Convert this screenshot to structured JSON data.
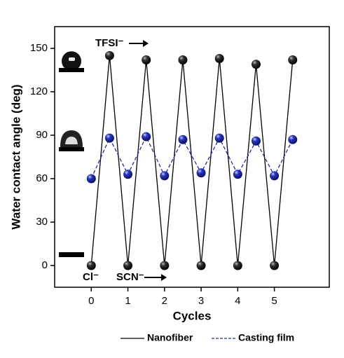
{
  "chart_data": {
    "type": "line",
    "x_label": "Cycles",
    "y_label": "Water contact angle (deg)",
    "xlim": [
      -1,
      6.5
    ],
    "xticks": [
      0,
      1,
      2,
      3,
      4,
      5
    ],
    "ylim": [
      -15,
      165
    ],
    "yticks": [
      0,
      30,
      60,
      90,
      120,
      150
    ],
    "x": [
      0,
      0.5,
      1,
      1.5,
      2,
      2.5,
      3,
      3.5,
      4,
      4.5,
      5,
      5.5
    ],
    "series": [
      {
        "name": "Nanofiber",
        "color": "#000000",
        "dash": false,
        "values": [
          0,
          145,
          0,
          142,
          0,
          142,
          0,
          143,
          0,
          139,
          0,
          142
        ]
      },
      {
        "name": "Casting film",
        "color": "#1f2a9e",
        "dash": true,
        "values": [
          60,
          88,
          63,
          89,
          62,
          87,
          64,
          88,
          63,
          86,
          62,
          87
        ]
      }
    ],
    "annotations": [
      "TFSI⁻",
      "Cl⁻",
      "SCN⁻"
    ]
  }
}
